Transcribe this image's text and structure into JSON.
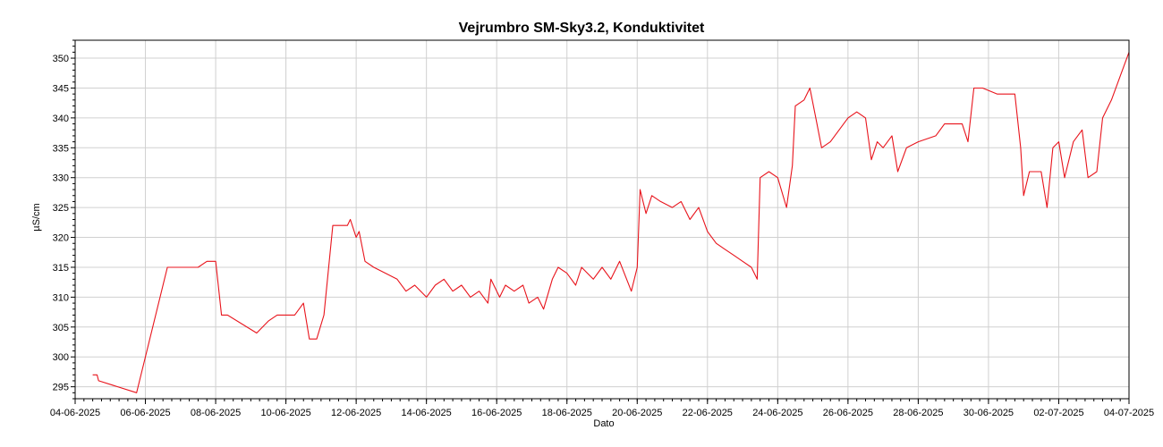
{
  "chart_data": {
    "type": "line",
    "title": "Vejrumbro SM-Sky3.2, Konduktivitet",
    "xlabel": "Dato",
    "ylabel": "µS/cm",
    "x_range": [
      "2025-06-04",
      "2025-07-04"
    ],
    "ylim": [
      293,
      353
    ],
    "x_ticks": [
      "04-06-2025",
      "06-06-2025",
      "08-06-2025",
      "10-06-2025",
      "12-06-2025",
      "14-06-2025",
      "16-06-2025",
      "18-06-2025",
      "20-06-2025",
      "22-06-2025",
      "24-06-2025",
      "26-06-2025",
      "28-06-2025",
      "30-06-2025",
      "02-07-2025",
      "04-07-2025"
    ],
    "y_ticks": [
      295,
      300,
      305,
      310,
      315,
      320,
      325,
      330,
      335,
      340,
      345,
      350
    ],
    "grid": true,
    "legend": "none",
    "series": [
      {
        "color": "#e8141c",
        "points": [
          [
            "2025-06-04 12:00",
            297
          ],
          [
            "2025-06-04 15:00",
            297
          ],
          [
            "2025-06-04 16:00",
            296
          ],
          [
            "2025-06-05 18:00",
            294
          ],
          [
            "2025-06-06 12:00",
            312
          ],
          [
            "2025-06-06 15:00",
            315
          ],
          [
            "2025-06-07 12:00",
            315
          ],
          [
            "2025-06-07 18:00",
            316
          ],
          [
            "2025-06-08 00:00",
            316
          ],
          [
            "2025-06-08 04:00",
            307
          ],
          [
            "2025-06-08 08:00",
            307
          ],
          [
            "2025-06-09 04:00",
            304
          ],
          [
            "2025-06-09 12:00",
            306
          ],
          [
            "2025-06-09 18:00",
            307
          ],
          [
            "2025-06-10 06:00",
            307
          ],
          [
            "2025-06-10 12:00",
            309
          ],
          [
            "2025-06-10 16:00",
            303
          ],
          [
            "2025-06-10 21:00",
            303
          ],
          [
            "2025-06-11 02:00",
            307
          ],
          [
            "2025-06-11 08:00",
            322
          ],
          [
            "2025-06-11 18:00",
            322
          ],
          [
            "2025-06-11 20:00",
            323
          ],
          [
            "2025-06-12 00:00",
            320
          ],
          [
            "2025-06-12 02:00",
            321
          ],
          [
            "2025-06-12 06:00",
            316
          ],
          [
            "2025-06-12 12:00",
            315
          ],
          [
            "2025-06-12 20:00",
            314
          ],
          [
            "2025-06-13 04:00",
            313
          ],
          [
            "2025-06-13 10:00",
            311
          ],
          [
            "2025-06-13 16:00",
            312
          ],
          [
            "2025-06-14 00:00",
            310
          ],
          [
            "2025-06-14 06:00",
            312
          ],
          [
            "2025-06-14 12:00",
            313
          ],
          [
            "2025-06-14 18:00",
            311
          ],
          [
            "2025-06-15 00:00",
            312
          ],
          [
            "2025-06-15 06:00",
            310
          ],
          [
            "2025-06-15 12:00",
            311
          ],
          [
            "2025-06-15 18:00",
            309
          ],
          [
            "2025-06-15 20:00",
            313
          ],
          [
            "2025-06-16 02:00",
            310
          ],
          [
            "2025-06-16 06:00",
            312
          ],
          [
            "2025-06-16 12:00",
            311
          ],
          [
            "2025-06-16 18:00",
            312
          ],
          [
            "2025-06-16 22:00",
            309
          ],
          [
            "2025-06-17 04:00",
            310
          ],
          [
            "2025-06-17 08:00",
            308
          ],
          [
            "2025-06-17 14:00",
            313
          ],
          [
            "2025-06-17 18:00",
            315
          ],
          [
            "2025-06-18 00:00",
            314
          ],
          [
            "2025-06-18 06:00",
            312
          ],
          [
            "2025-06-18 10:00",
            315
          ],
          [
            "2025-06-18 18:00",
            313
          ],
          [
            "2025-06-19 00:00",
            315
          ],
          [
            "2025-06-19 06:00",
            313
          ],
          [
            "2025-06-19 12:00",
            316
          ],
          [
            "2025-06-19 20:00",
            311
          ],
          [
            "2025-06-20 00:00",
            315
          ],
          [
            "2025-06-20 02:00",
            328
          ],
          [
            "2025-06-20 06:00",
            324
          ],
          [
            "2025-06-20 10:00",
            327
          ],
          [
            "2025-06-20 16:00",
            326
          ],
          [
            "2025-06-21 00:00",
            325
          ],
          [
            "2025-06-21 06:00",
            326
          ],
          [
            "2025-06-21 12:00",
            323
          ],
          [
            "2025-06-21 18:00",
            325
          ],
          [
            "2025-06-22 00:00",
            321
          ],
          [
            "2025-06-22 06:00",
            319
          ],
          [
            "2025-06-22 12:00",
            318
          ],
          [
            "2025-06-22 18:00",
            317
          ],
          [
            "2025-06-23 00:00",
            316
          ],
          [
            "2025-06-23 06:00",
            315
          ],
          [
            "2025-06-23 10:00",
            313
          ],
          [
            "2025-06-23 12:00",
            330
          ],
          [
            "2025-06-23 18:00",
            331
          ],
          [
            "2025-06-24 00:00",
            330
          ],
          [
            "2025-06-24 06:00",
            325
          ],
          [
            "2025-06-24 10:00",
            332
          ],
          [
            "2025-06-24 12:00",
            342
          ],
          [
            "2025-06-24 18:00",
            343
          ],
          [
            "2025-06-24 22:00",
            345
          ],
          [
            "2025-06-25 02:00",
            340
          ],
          [
            "2025-06-25 06:00",
            335
          ],
          [
            "2025-06-25 12:00",
            336
          ],
          [
            "2025-06-25 18:00",
            338
          ],
          [
            "2025-06-26 00:00",
            340
          ],
          [
            "2025-06-26 06:00",
            341
          ],
          [
            "2025-06-26 12:00",
            340
          ],
          [
            "2025-06-26 16:00",
            333
          ],
          [
            "2025-06-26 20:00",
            336
          ],
          [
            "2025-06-27 00:00",
            335
          ],
          [
            "2025-06-27 06:00",
            337
          ],
          [
            "2025-06-27 10:00",
            331
          ],
          [
            "2025-06-27 16:00",
            335
          ],
          [
            "2025-06-28 00:00",
            336
          ],
          [
            "2025-06-28 12:00",
            337
          ],
          [
            "2025-06-28 18:00",
            339
          ],
          [
            "2025-06-29 06:00",
            339
          ],
          [
            "2025-06-29 10:00",
            336
          ],
          [
            "2025-06-29 14:00",
            345
          ],
          [
            "2025-06-29 20:00",
            345
          ],
          [
            "2025-06-30 06:00",
            344
          ],
          [
            "2025-06-30 18:00",
            344
          ],
          [
            "2025-06-30 22:00",
            335
          ],
          [
            "2025-07-01 00:00",
            327
          ],
          [
            "2025-07-01 04:00",
            331
          ],
          [
            "2025-07-01 12:00",
            331
          ],
          [
            "2025-07-01 16:00",
            325
          ],
          [
            "2025-07-01 20:00",
            335
          ],
          [
            "2025-07-02 00:00",
            336
          ],
          [
            "2025-07-02 04:00",
            330
          ],
          [
            "2025-07-02 10:00",
            336
          ],
          [
            "2025-07-02 16:00",
            338
          ],
          [
            "2025-07-02 20:00",
            330
          ],
          [
            "2025-07-03 02:00",
            331
          ],
          [
            "2025-07-03 06:00",
            340
          ],
          [
            "2025-07-03 12:00",
            343
          ],
          [
            "2025-07-03 18:00",
            347
          ],
          [
            "2025-07-04 00:00",
            351
          ]
        ]
      }
    ]
  }
}
